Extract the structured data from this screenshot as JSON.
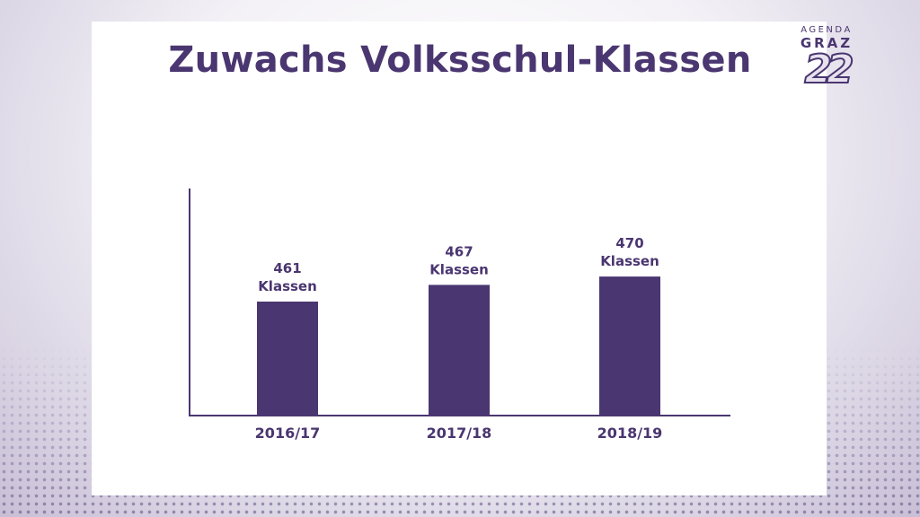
{
  "title": "Zuwachs Volksschul-Klassen",
  "logo": {
    "line1": "AGENDA",
    "line2": "GRAZ",
    "line3": "22"
  },
  "colors": {
    "accent": "#4a3670"
  },
  "chart_data": {
    "type": "bar",
    "title": "Zuwachs Volksschul-Klassen",
    "xlabel": "",
    "ylabel": "",
    "categories": [
      "2016/17",
      "2017/18",
      "2018/19"
    ],
    "values": [
      461,
      467,
      470
    ],
    "data_labels": [
      [
        "461",
        "Klassen"
      ],
      [
        "467",
        "Klassen"
      ],
      [
        "470",
        "Klassen"
      ]
    ],
    "grid": false,
    "legend": "none"
  }
}
